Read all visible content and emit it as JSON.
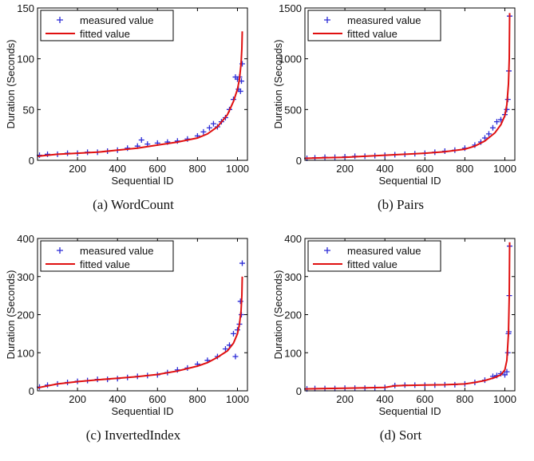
{
  "legend": {
    "measured": "measured value",
    "fitted": "fitted value"
  },
  "colors": {
    "measured": "#2b2bd6",
    "fitted": "#e01010",
    "axis": "#000000"
  },
  "chart_data": [
    {
      "type": "scatter",
      "caption": "(a) WordCount",
      "xlabel": "Sequential ID",
      "ylabel": "Duration (Seconds)",
      "xlim": [
        0,
        1050
      ],
      "ylim": [
        0,
        150
      ],
      "xticks": [
        200,
        400,
        600,
        800,
        1000
      ],
      "yticks": [
        0,
        50,
        100,
        150
      ],
      "legend_position": "top-left",
      "series": [
        {
          "name": "measured value",
          "x": [
            10,
            50,
            100,
            150,
            200,
            250,
            300,
            350,
            400,
            450,
            500,
            520,
            550,
            600,
            650,
            700,
            750,
            800,
            830,
            860,
            880,
            900,
            920,
            940,
            960,
            980,
            990,
            1000,
            1005,
            1010,
            1015,
            1020,
            1024
          ],
          "y": [
            5,
            6,
            6,
            7,
            7,
            8,
            8,
            9,
            10,
            12,
            14,
            20,
            16,
            17,
            18,
            19,
            21,
            24,
            28,
            32,
            36,
            33,
            38,
            42,
            50,
            60,
            82,
            80,
            70,
            82,
            68,
            78,
            95
          ]
        },
        {
          "name": "fitted value",
          "x": [
            1,
            100,
            200,
            300,
            400,
            500,
            600,
            700,
            800,
            850,
            900,
            950,
            980,
            1000,
            1010,
            1018,
            1022,
            1024
          ],
          "y": [
            4,
            6,
            7,
            8,
            10,
            12,
            15,
            18,
            22,
            26,
            33,
            45,
            58,
            70,
            80,
            95,
            110,
            127
          ]
        }
      ]
    },
    {
      "type": "scatter",
      "caption": "(b) Pairs",
      "xlabel": "Sequential ID",
      "ylabel": "Duration (Seconds)",
      "xlim": [
        0,
        1050
      ],
      "ylim": [
        0,
        1500
      ],
      "xticks": [
        200,
        400,
        600,
        800,
        1000
      ],
      "yticks": [
        0,
        500,
        1000,
        1500
      ],
      "legend_position": "top-left",
      "series": [
        {
          "name": "measured value",
          "x": [
            10,
            50,
            100,
            150,
            200,
            250,
            300,
            350,
            400,
            450,
            500,
            550,
            600,
            650,
            700,
            750,
            800,
            850,
            880,
            900,
            920,
            940,
            960,
            980,
            1000,
            1010,
            1015,
            1020,
            1024
          ],
          "y": [
            20,
            25,
            30,
            30,
            35,
            40,
            40,
            45,
            50,
            55,
            60,
            65,
            70,
            80,
            90,
            100,
            120,
            150,
            180,
            220,
            260,
            320,
            380,
            400,
            450,
            500,
            600,
            880,
            1420
          ]
        },
        {
          "name": "fitted value",
          "x": [
            1,
            100,
            200,
            300,
            400,
            500,
            600,
            700,
            800,
            850,
            900,
            950,
            980,
            1000,
            1010,
            1018,
            1022,
            1024
          ],
          "y": [
            20,
            25,
            30,
            40,
            50,
            60,
            70,
            85,
            110,
            140,
            190,
            270,
            350,
            440,
            550,
            750,
            1000,
            1450
          ]
        }
      ]
    },
    {
      "type": "scatter",
      "caption": "(c) InvertedIndex",
      "xlabel": "Sequential ID",
      "ylabel": "Duration (Seconds)",
      "xlim": [
        0,
        1050
      ],
      "ylim": [
        0,
        400
      ],
      "xticks": [
        200,
        400,
        600,
        800,
        1000
      ],
      "yticks": [
        0,
        100,
        200,
        300,
        400
      ],
      "legend_position": "top-left",
      "series": [
        {
          "name": "measured value",
          "x": [
            10,
            50,
            100,
            150,
            200,
            250,
            300,
            350,
            400,
            450,
            500,
            550,
            600,
            650,
            700,
            750,
            800,
            850,
            900,
            940,
            960,
            980,
            990,
            1000,
            1010,
            1015,
            1020,
            1024
          ],
          "y": [
            10,
            15,
            18,
            22,
            25,
            27,
            30,
            30,
            32,
            35,
            38,
            40,
            42,
            48,
            55,
            60,
            70,
            80,
            90,
            110,
            120,
            150,
            90,
            160,
            175,
            235,
            200,
            335
          ]
        },
        {
          "name": "fitted value",
          "x": [
            1,
            100,
            200,
            300,
            400,
            500,
            600,
            700,
            800,
            850,
            900,
            950,
            980,
            1000,
            1010,
            1018,
            1022,
            1024
          ],
          "y": [
            8,
            18,
            24,
            29,
            33,
            37,
            43,
            52,
            65,
            74,
            88,
            105,
            125,
            150,
            175,
            210,
            250,
            300
          ]
        }
      ]
    },
    {
      "type": "scatter",
      "caption": "(d) Sort",
      "xlabel": "Sequential ID",
      "ylabel": "Duration (Seconds)",
      "xlim": [
        0,
        1050
      ],
      "ylim": [
        0,
        400
      ],
      "xticks": [
        200,
        400,
        600,
        800,
        1000
      ],
      "yticks": [
        0,
        100,
        200,
        300,
        400
      ],
      "legend_position": "top-left",
      "series": [
        {
          "name": "measured value",
          "x": [
            10,
            50,
            100,
            150,
            200,
            250,
            300,
            350,
            400,
            450,
            500,
            550,
            600,
            650,
            700,
            750,
            800,
            850,
            900,
            940,
            960,
            980,
            1000,
            1010,
            1015,
            1018,
            1020,
            1022,
            1024
          ],
          "y": [
            5,
            6,
            6,
            6,
            7,
            7,
            7,
            8,
            9,
            14,
            15,
            15,
            15,
            15,
            16,
            16,
            18,
            22,
            28,
            38,
            40,
            45,
            42,
            50,
            100,
            150,
            155,
            250,
            380
          ]
        },
        {
          "name": "fitted value",
          "x": [
            1,
            100,
            200,
            300,
            400,
            450,
            500,
            600,
            700,
            800,
            850,
            900,
            950,
            980,
            1000,
            1010,
            1018,
            1022,
            1024
          ],
          "y": [
            5,
            6,
            7,
            8,
            9,
            13,
            14,
            15,
            16,
            18,
            22,
            27,
            35,
            42,
            55,
            80,
            150,
            250,
            390
          ]
        }
      ]
    }
  ]
}
